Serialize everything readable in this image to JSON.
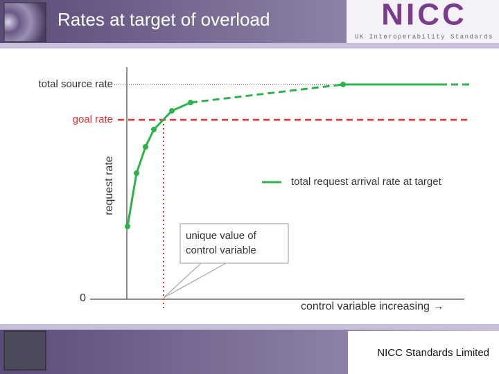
{
  "header": {
    "title": "Rates at target of overload",
    "logo": "NICC",
    "logo_subtitle": "UK Interoperability Standards"
  },
  "diagram": {
    "y_axis_label": "request rate",
    "total_source_rate": "total source rate",
    "goal_rate": "goal rate",
    "origin": "0",
    "x_axis_label": "control variable increasing →",
    "legend": "total request arrival rate at target",
    "callout": [
      "unique value of",
      "control variable"
    ]
  },
  "footer": {
    "text": "NICC Standards Limited"
  }
}
